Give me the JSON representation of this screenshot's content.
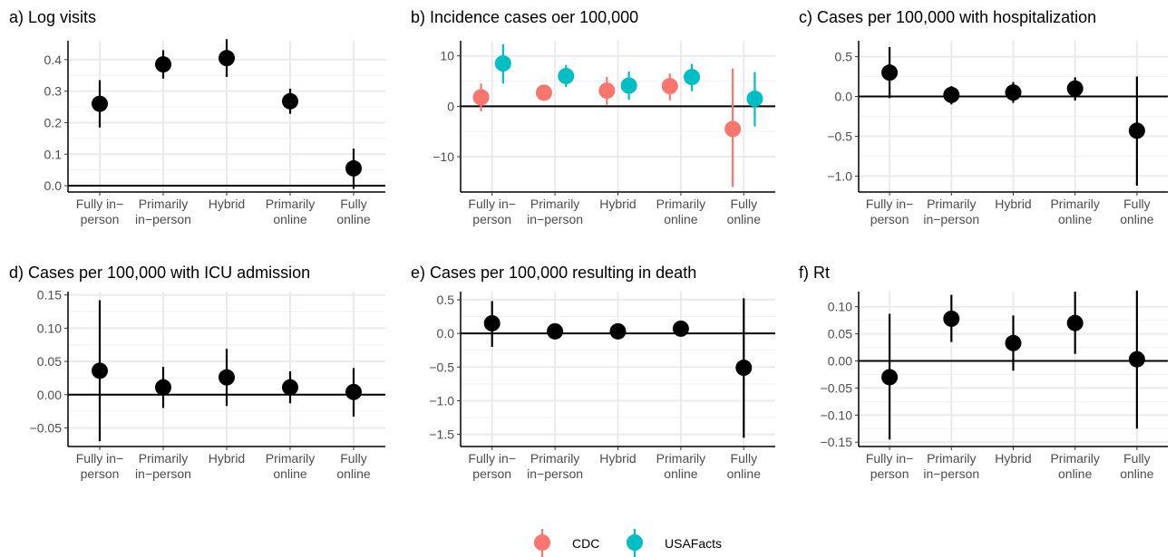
{
  "colors": {
    "CDC": "#F8766D",
    "USAFacts": "#00BFC4",
    "single": "#000000"
  },
  "legend": {
    "position": "bottom",
    "items": [
      {
        "name": "CDC"
      },
      {
        "name": "USAFacts"
      }
    ]
  },
  "chart_data": [
    {
      "type": "scatter",
      "title": "a) Log visits",
      "categories": [
        "Fully in-person",
        "Primarily in-person",
        "Hybrid",
        "Primarily online",
        "Fully online"
      ],
      "tick_labels": [
        [
          "Fully in−",
          "person"
        ],
        [
          "Primarily",
          "in−person"
        ],
        [
          "Hybrid"
        ],
        [
          "Primarily",
          "online"
        ],
        [
          "Fully",
          "online"
        ]
      ],
      "ylim": [
        -0.02,
        0.46
      ],
      "yticks": [
        0.0,
        0.1,
        0.2,
        0.3,
        0.4
      ],
      "ytick_labels": [
        "0.0",
        "0.1",
        "0.2",
        "0.3",
        "0.4"
      ],
      "series": [
        {
          "key": "single",
          "points": [
            {
              "y": 0.26,
              "lo": 0.185,
              "hi": 0.335
            },
            {
              "y": 0.385,
              "lo": 0.34,
              "hi": 0.43
            },
            {
              "y": 0.405,
              "lo": 0.345,
              "hi": 0.465
            },
            {
              "y": 0.268,
              "lo": 0.228,
              "hi": 0.308
            },
            {
              "y": 0.055,
              "lo": -0.01,
              "hi": 0.118
            }
          ]
        }
      ]
    },
    {
      "type": "scatter",
      "title": "b) Incidence cases oer 100,000",
      "categories": [
        "Fully in-person",
        "Primarily in-person",
        "Hybrid",
        "Primarily online",
        "Fully online"
      ],
      "tick_labels": [
        [
          "Fully in−",
          "person"
        ],
        [
          "Primarily",
          "in−person"
        ],
        [
          "Hybrid"
        ],
        [
          "Primarily",
          "online"
        ],
        [
          "Fully",
          "online"
        ]
      ],
      "ylim": [
        -17,
        13
      ],
      "yticks": [
        -10,
        0,
        10
      ],
      "ytick_labels": [
        "−10",
        "0",
        "10"
      ],
      "series": [
        {
          "name": "CDC",
          "key": "CDC",
          "points": [
            {
              "y": 1.8,
              "lo": -1.0,
              "hi": 4.5
            },
            {
              "y": 2.7,
              "lo": 1.2,
              "hi": 4.2
            },
            {
              "y": 3.1,
              "lo": 0.3,
              "hi": 5.8
            },
            {
              "y": 4.0,
              "lo": 1.2,
              "hi": 6.5
            },
            {
              "y": -4.5,
              "lo": -16.0,
              "hi": 7.5
            }
          ]
        },
        {
          "name": "USAFacts",
          "key": "USAFacts",
          "points": [
            {
              "y": 8.5,
              "lo": 4.5,
              "hi": 12.3
            },
            {
              "y": 6.0,
              "lo": 3.8,
              "hi": 8.2
            },
            {
              "y": 4.1,
              "lo": 1.3,
              "hi": 6.9
            },
            {
              "y": 5.8,
              "lo": 3.0,
              "hi": 8.4
            },
            {
              "y": 1.5,
              "lo": -4.0,
              "hi": 6.8
            }
          ]
        }
      ]
    },
    {
      "type": "scatter",
      "title": "c) Cases per 100,000 with hospitalization",
      "categories": [
        "Fully in-person",
        "Primarily in-person",
        "Hybrid",
        "Primarily online",
        "Fully online"
      ],
      "tick_labels": [
        [
          "Fully in−",
          "person"
        ],
        [
          "Primarily",
          "in−person"
        ],
        [
          "Hybrid"
        ],
        [
          "Primarily",
          "online"
        ],
        [
          "Fully",
          "online"
        ]
      ],
      "ylim": [
        -1.2,
        0.7
      ],
      "yticks": [
        -1.0,
        -0.5,
        0.0,
        0.5
      ],
      "ytick_labels": [
        "−1.0",
        "−0.5",
        "0.0",
        "0.5"
      ],
      "series": [
        {
          "key": "single",
          "points": [
            {
              "y": 0.3,
              "lo": -0.02,
              "hi": 0.62
            },
            {
              "y": 0.02,
              "lo": -0.1,
              "hi": 0.13
            },
            {
              "y": 0.05,
              "lo": -0.08,
              "hi": 0.18
            },
            {
              "y": 0.1,
              "lo": -0.05,
              "hi": 0.24
            },
            {
              "y": -0.43,
              "lo": -1.12,
              "hi": 0.25
            }
          ]
        }
      ]
    },
    {
      "type": "scatter",
      "title": "d) Cases per 100,000 with ICU admission",
      "categories": [
        "Fully in-person",
        "Primarily in-person",
        "Hybrid",
        "Primarily online",
        "Fully online"
      ],
      "tick_labels": [
        [
          "Fully in−",
          "person"
        ],
        [
          "Primarily",
          "in−person"
        ],
        [
          "Hybrid"
        ],
        [
          "Primarily",
          "online"
        ],
        [
          "Fully",
          "online"
        ]
      ],
      "ylim": [
        -0.078,
        0.155
      ],
      "yticks": [
        -0.05,
        0.0,
        0.05,
        0.1,
        0.15
      ],
      "ytick_labels": [
        "−0.05",
        "0.00",
        "0.05",
        "0.10",
        "0.15"
      ],
      "series": [
        {
          "key": "single",
          "points": [
            {
              "y": 0.036,
              "lo": -0.07,
              "hi": 0.142
            },
            {
              "y": 0.011,
              "lo": -0.02,
              "hi": 0.042
            },
            {
              "y": 0.026,
              "lo": -0.017,
              "hi": 0.069
            },
            {
              "y": 0.011,
              "lo": -0.013,
              "hi": 0.035
            },
            {
              "y": 0.004,
              "lo": -0.033,
              "hi": 0.04
            }
          ]
        }
      ]
    },
    {
      "type": "scatter",
      "title": "e) Cases per 100,000 resulting in death",
      "categories": [
        "Fully in-person",
        "Primarily in-person",
        "Hybrid",
        "Primarily online",
        "Fully online"
      ],
      "tick_labels": [
        [
          "Fully in−",
          "person"
        ],
        [
          "Primarily",
          "in−person"
        ],
        [
          "Hybrid"
        ],
        [
          "Primarily",
          "online"
        ],
        [
          "Fully",
          "online"
        ]
      ],
      "ylim": [
        -1.68,
        0.62
      ],
      "yticks": [
        -1.5,
        -1.0,
        -0.5,
        0.0,
        0.5
      ],
      "ytick_labels": [
        "−1.5",
        "−1.0",
        "−0.5",
        "0.0",
        "0.5"
      ],
      "series": [
        {
          "key": "single",
          "points": [
            {
              "y": 0.15,
              "lo": -0.2,
              "hi": 0.48
            },
            {
              "y": 0.03,
              "lo": -0.02,
              "hi": 0.08
            },
            {
              "y": 0.03,
              "lo": -0.02,
              "hi": 0.08
            },
            {
              "y": 0.07,
              "lo": 0.02,
              "hi": 0.12
            },
            {
              "y": -0.51,
              "lo": -1.55,
              "hi": 0.52
            }
          ]
        }
      ]
    },
    {
      "type": "scatter",
      "title": "f) Rt",
      "categories": [
        "Fully in-person",
        "Primarily in-person",
        "Hybrid",
        "Primarily online",
        "Fully online"
      ],
      "tick_labels": [
        [
          "Fully in−",
          "person"
        ],
        [
          "Primarily",
          "in−person"
        ],
        [
          "Hybrid"
        ],
        [
          "Primarily",
          "online"
        ],
        [
          "Fully",
          "online"
        ]
      ],
      "ylim": [
        -0.158,
        0.128
      ],
      "yticks": [
        -0.15,
        -0.1,
        -0.05,
        0.0,
        0.05,
        0.1
      ],
      "ytick_labels": [
        "−0.15",
        "−0.10",
        "−0.05",
        "0.00",
        "0.05",
        "0.10"
      ],
      "series": [
        {
          "key": "single",
          "points": [
            {
              "y": -0.03,
              "lo": -0.145,
              "hi": 0.087
            },
            {
              "y": 0.078,
              "lo": 0.035,
              "hi": 0.122
            },
            {
              "y": 0.033,
              "lo": -0.018,
              "hi": 0.084
            },
            {
              "y": 0.07,
              "lo": 0.013,
              "hi": 0.128
            },
            {
              "y": 0.003,
              "lo": -0.125,
              "hi": 0.13
            }
          ]
        }
      ]
    }
  ]
}
